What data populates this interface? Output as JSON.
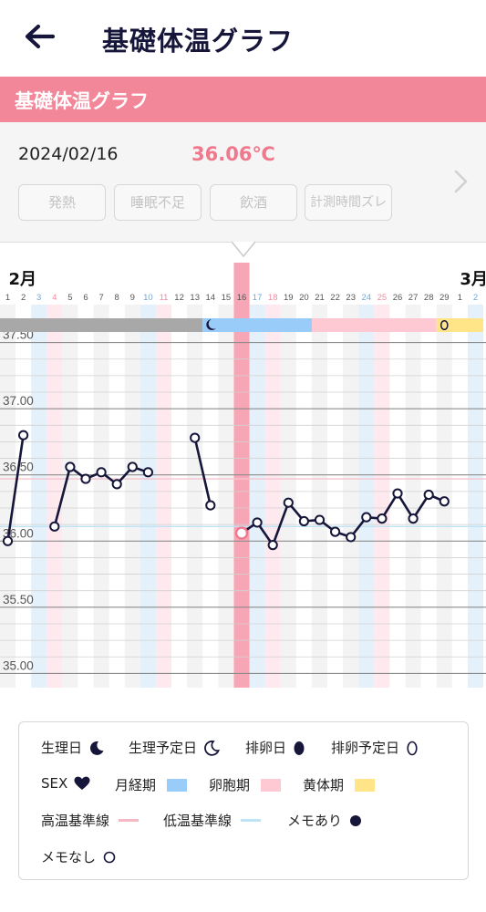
{
  "appbar": {
    "title": "基礎体温グラフ"
  },
  "banner": {
    "title": "基礎体温グラフ"
  },
  "entry": {
    "date": "2024/02/16",
    "temperature": "36.06℃",
    "tags": [
      "発熱",
      "睡眠不足",
      "飲酒",
      "計測時間ズレ"
    ]
  },
  "colors": {
    "accent": "#f2879a",
    "line": "#16163a",
    "menstrual": "#99ccf8",
    "follicular": "#ffc9d4",
    "luteal": "#ffe587",
    "selected": "#f7a6b6"
  },
  "chart_data": {
    "type": "line",
    "months": [
      {
        "label": "2月",
        "at_day": 1
      },
      {
        "label": "3月",
        "at_day": 30
      }
    ],
    "days": [
      "1",
      "2",
      "3",
      "4",
      "5",
      "6",
      "7",
      "8",
      "9",
      "10",
      "11",
      "12",
      "13",
      "14",
      "15",
      "16",
      "17",
      "18",
      "19",
      "20",
      "21",
      "22",
      "23",
      "24",
      "25",
      "26",
      "27",
      "28",
      "29",
      "1",
      "2"
    ],
    "y_ticks": [
      "37.50",
      "37.00",
      "36.50",
      "36.00",
      "35.50",
      "35.00"
    ],
    "ylim": [
      34.92,
      37.58
    ],
    "selected_day": 16,
    "series": [
      {
        "values": [
          36.0,
          36.8,
          null,
          36.11,
          36.56,
          36.47,
          36.52,
          36.43,
          36.56,
          36.52,
          null,
          null,
          36.78,
          36.27,
          null,
          36.06,
          36.14,
          35.97,
          36.29,
          36.15,
          36.16,
          36.07,
          36.03,
          36.18,
          36.17,
          36.36,
          36.17,
          36.35,
          36.3,
          null,
          null
        ]
      }
    ],
    "phases": [
      {
        "phase": "other",
        "from": 1,
        "to": 13
      },
      {
        "phase": "menstrual",
        "from": 14,
        "to": 20
      },
      {
        "phase": "follicular",
        "from": 21,
        "to": 28
      },
      {
        "phase": "luteal",
        "from": 29,
        "to": 31
      }
    ],
    "phase_markers": [
      {
        "type": "menstruation-day",
        "day": 14
      },
      {
        "type": "predicted-ovulation",
        "day": 29
      }
    ],
    "grid": true
  },
  "legend": {
    "items": [
      {
        "label": "生理日",
        "icon": "moon-filled-icon"
      },
      {
        "label": "生理予定日",
        "icon": "moon-outline-icon"
      },
      {
        "label": "排卵日",
        "icon": "egg-filled-icon"
      },
      {
        "label": "排卵予定日",
        "icon": "egg-outline-icon"
      },
      {
        "label": "SEX",
        "icon": "heart-icon"
      },
      {
        "label": "月経期",
        "icon": "menstrual-swatch"
      },
      {
        "label": "卵胞期",
        "icon": "follicular-swatch"
      },
      {
        "label": "黄体期",
        "icon": "luteal-swatch"
      },
      {
        "label": "高温基準線",
        "icon": "high-line"
      },
      {
        "label": "低温基準線",
        "icon": "low-line"
      },
      {
        "label": "メモあり",
        "icon": "memo-filled-dot"
      },
      {
        "label": "メモなし",
        "icon": "memo-empty-dot"
      }
    ]
  }
}
